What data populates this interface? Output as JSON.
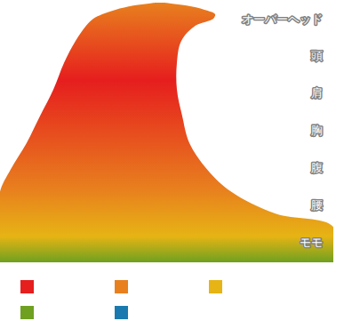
{
  "chart_data": {
    "type": "area",
    "orientation": "horizontal",
    "y": [
      0.45,
      1.4,
      1.76,
      2.35,
      2.95,
      3.66,
      4.38,
      5.09,
      5.81,
      6.4,
      6.81,
      7.0,
      7.12,
      7.24,
      7.35,
      7.43
    ],
    "x1": [
      0,
      0,
      0,
      0,
      12,
      30,
      45,
      60,
      72,
      85,
      97,
      105,
      115,
      130,
      150,
      175
    ],
    "x2": [
      375,
      375,
      310,
      260,
      233,
      213,
      205,
      199,
      199,
      204,
      220,
      240,
      242,
      230,
      210,
      185
    ],
    "xlim": [
      0,
      375
    ],
    "ylim": [
      0.45,
      7.5
    ],
    "yticks": [
      {
        "value": 7,
        "label": "オーバーヘッド"
      },
      {
        "value": 6,
        "label": "頭"
      },
      {
        "value": 5,
        "label": "肩"
      },
      {
        "value": 4,
        "label": "胸"
      },
      {
        "value": 3,
        "label": "腹"
      },
      {
        "value": 2,
        "label": "腰"
      },
      {
        "value": 1,
        "label": "モモ"
      }
    ],
    "tick_labels": "y",
    "colors": [
      "#e61e1e",
      "#e8801e",
      "#e6b414",
      "#6fa020",
      "#1a7ab0"
    ],
    "legend": "bottom"
  }
}
